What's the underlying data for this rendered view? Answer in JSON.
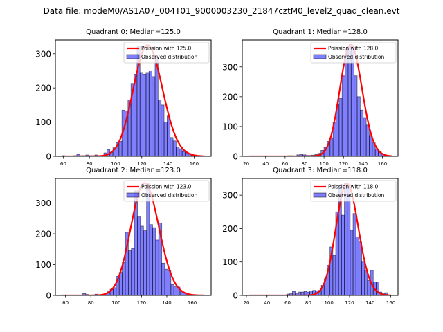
{
  "figure": {
    "suptitle": "Data file: modeM0/AS1A07_004T01_9000003230_21847cztM0_level2_quad_clean.evt"
  },
  "colors": {
    "poisson_line": "#ff0000",
    "hist_fill": "#0000ff",
    "hist_fill_alpha": 0.5,
    "hist_edge": "#000000"
  },
  "chart_data": [
    {
      "type": "bar",
      "title": "Quadrant 0: Median=125.0",
      "xlabel": "",
      "ylabel": "",
      "xlim": [
        54,
        173
      ],
      "ylim": [
        0,
        340
      ],
      "xticks": [
        60,
        80,
        100,
        120,
        140,
        160
      ],
      "yticks": [
        0,
        100,
        200,
        300
      ],
      "legend": {
        "position": "top-right",
        "entries": [
          "Poission with 125.0",
          "Observed distribution"
        ]
      },
      "poisson": {
        "name": "Poission with 125.0",
        "mean": 125.0,
        "scale_peak": 325,
        "x_range": [
          59,
          168
        ]
      },
      "histogram": {
        "name": "Observed distribution",
        "bin_width": 2.3,
        "bin_centers": [
          60,
          62.3,
          64.6,
          66.9,
          69.2,
          71.5,
          73.8,
          76.1,
          78.4,
          80.7,
          83,
          85.3,
          87.6,
          89.9,
          92.2,
          94.5,
          96.8,
          99.1,
          101.4,
          103.7,
          106,
          108.3,
          110.6,
          112.9,
          115.2,
          117.5,
          119.8,
          122.1,
          124.4,
          126.7,
          129,
          131.3,
          133.6,
          135.9,
          138.2,
          140.5,
          142.8,
          145.1,
          147.4,
          149.7,
          152,
          154.3,
          156.6,
          158.9,
          161.2,
          163.5,
          165.8
        ],
        "counts": [
          2,
          1,
          1,
          1,
          2,
          6,
          2,
          2,
          4,
          2,
          2,
          4,
          2,
          2,
          10,
          20,
          12,
          25,
          40,
          44,
          135,
          133,
          165,
          213,
          240,
          322,
          245,
          240,
          245,
          250,
          233,
          290,
          165,
          150,
          100,
          120,
          55,
          45,
          27,
          22,
          14,
          12,
          8,
          4,
          2,
          1,
          1
        ]
      }
    },
    {
      "type": "bar",
      "title": "Quadrant 1: Median=128.0",
      "xlabel": "",
      "ylabel": "",
      "xlim": [
        16,
        176
      ],
      "ylim": [
        0,
        390
      ],
      "xticks": [
        20,
        40,
        60,
        80,
        100,
        120,
        140,
        160
      ],
      "yticks": [
        0,
        100,
        200,
        300
      ],
      "legend": {
        "position": "top-right",
        "entries": [
          "Poission with 128.0",
          "Observed distribution"
        ]
      },
      "poisson": {
        "name": "Poission with 128.0",
        "mean": 128.0,
        "scale_peak": 375,
        "x_range": [
          23,
          170
        ]
      },
      "histogram": {
        "name": "Observed distribution",
        "bin_width": 3.1,
        "bin_centers": [
          24,
          27.1,
          30.2,
          33.3,
          36.4,
          39.5,
          42.6,
          45.7,
          48.8,
          51.9,
          55,
          58.1,
          61.2,
          64.3,
          67.4,
          70.5,
          73.6,
          76.7,
          79.8,
          82.9,
          86,
          89.1,
          92.2,
          95.3,
          98.4,
          101.5,
          104.6,
          107.7,
          110.8,
          113.9,
          117,
          120.1,
          123.2,
          126.3,
          129.4,
          132.5,
          135.6,
          138.7,
          141.8,
          144.9,
          148,
          151.1,
          154.2,
          157.3,
          160.4,
          163.5,
          166.6
        ],
        "counts": [
          1,
          0,
          0,
          0,
          0,
          0,
          0,
          0,
          0,
          0,
          1,
          1,
          1,
          2,
          2,
          1,
          5,
          6,
          5,
          3,
          3,
          4,
          6,
          10,
          20,
          30,
          50,
          62,
          115,
          175,
          195,
          270,
          360,
          370,
          370,
          270,
          200,
          155,
          130,
          105,
          70,
          45,
          25,
          15,
          8,
          3,
          1
        ]
      }
    },
    {
      "type": "bar",
      "title": "Quadrant 2: Median=123.0",
      "xlabel": "",
      "ylabel": "",
      "xlim": [
        52,
        175
      ],
      "ylim": [
        0,
        380
      ],
      "xticks": [
        60,
        80,
        100,
        120,
        140,
        160
      ],
      "yticks": [
        0,
        100,
        200,
        300
      ],
      "legend": {
        "position": "top-right",
        "entries": [
          "Poission with 123.0",
          "Observed distribution"
        ]
      },
      "poisson": {
        "name": "Poission with 123.0",
        "mean": 123.0,
        "scale_peak": 365,
        "x_range": [
          57,
          169
        ]
      },
      "histogram": {
        "name": "Observed distribution",
        "bin_width": 2.4,
        "bin_centers": [
          58,
          60.4,
          62.8,
          65.2,
          67.6,
          70,
          72.4,
          74.8,
          77.2,
          79.6,
          82,
          84.4,
          86.8,
          89.2,
          91.6,
          94,
          96.4,
          98.8,
          101.2,
          103.6,
          106,
          108.4,
          110.8,
          113.2,
          115.6,
          118,
          120.4,
          122.8,
          125.2,
          127.6,
          130,
          132.4,
          134.8,
          137.2,
          139.6,
          142,
          144.4,
          146.8,
          149.2,
          151.6,
          154,
          156.4,
          158.8,
          161.2,
          163.6,
          166
        ],
        "counts": [
          1,
          1,
          1,
          1,
          1,
          1,
          1,
          6,
          3,
          1,
          1,
          4,
          2,
          2,
          5,
          15,
          20,
          25,
          62,
          75,
          107,
          205,
          145,
          152,
          340,
          255,
          225,
          210,
          365,
          230,
          220,
          180,
          235,
          105,
          85,
          80,
          35,
          28,
          27,
          12,
          8,
          4,
          2,
          1,
          1,
          1
        ]
      }
    },
    {
      "type": "bar",
      "title": "Quadrant 3: Median=118.0",
      "xlabel": "",
      "ylabel": "",
      "xlim": [
        16,
        167
      ],
      "ylim": [
        0,
        350
      ],
      "xticks": [
        20,
        40,
        60,
        80,
        100,
        120,
        140,
        160
      ],
      "yticks": [
        0,
        100,
        200,
        300
      ],
      "legend": {
        "position": "top-right",
        "entries": [
          "Poission with 118.0",
          "Observed distribution"
        ]
      },
      "poisson": {
        "name": "Poission with 118.0",
        "mean": 118.0,
        "scale_peak": 335,
        "x_range": [
          23,
          160
        ]
      },
      "histogram": {
        "name": "Observed distribution",
        "bin_width": 2.8,
        "bin_centers": [
          24,
          26.8,
          29.6,
          32.4,
          35.2,
          38,
          40.8,
          43.6,
          46.4,
          49.2,
          52,
          54.8,
          57.6,
          60.4,
          63.2,
          66,
          68.8,
          71.6,
          74.4,
          77.2,
          80,
          82.8,
          85.6,
          88.4,
          91.2,
          94,
          96.8,
          99.6,
          102.4,
          105.2,
          108,
          110.8,
          113.6,
          116.4,
          119.2,
          122,
          124.8,
          127.6,
          130.4,
          133.2,
          136,
          138.8,
          141.6,
          144.4,
          147.2,
          150,
          152.8,
          155.6,
          158.4
        ],
        "counts": [
          0,
          0,
          0,
          0,
          0,
          0,
          0,
          0,
          0,
          0,
          1,
          1,
          1,
          4,
          5,
          12,
          5,
          10,
          10,
          12,
          10,
          13,
          15,
          14,
          15,
          30,
          50,
          90,
          145,
          120,
          250,
          330,
          240,
          335,
          330,
          195,
          245,
          175,
          160,
          100,
          75,
          45,
          75,
          40,
          40,
          10,
          5,
          8,
          1
        ]
      }
    }
  ]
}
